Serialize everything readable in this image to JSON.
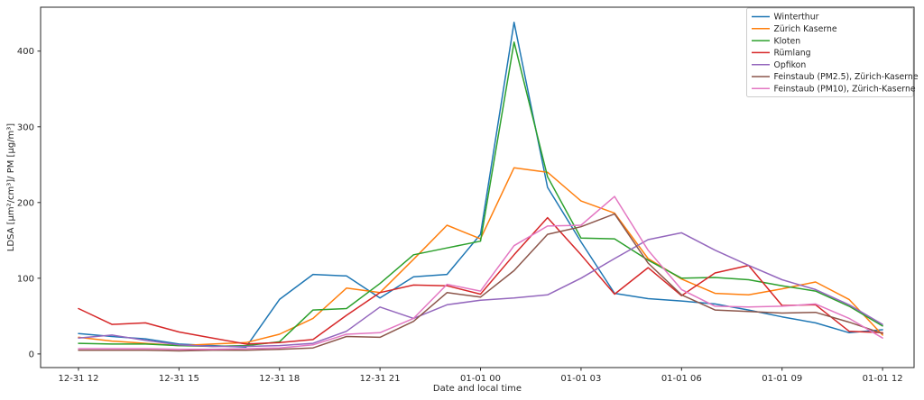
{
  "figure": {
    "kind": "matplotlib-style line figure"
  },
  "chart_data": {
    "type": "line",
    "title": "",
    "xlabel": "Date and local time",
    "ylabel": "LDSA [μm²/cm³]/ PM [μg/m³]",
    "grid": false,
    "legend_position": "upper right",
    "x_tick_labels": [
      "12-31 12",
      "12-31 15",
      "12-31 18",
      "12-31 21",
      "01-01 00",
      "01-01 03",
      "01-01 06",
      "01-01 09",
      "01-01 12"
    ],
    "x_tick_hours": [
      0,
      3,
      6,
      9,
      12,
      15,
      18,
      21,
      24
    ],
    "y_tick_labels": [
      "0",
      "100",
      "200",
      "300",
      "400"
    ],
    "y_ticks": [
      0,
      100,
      200,
      300,
      400
    ],
    "xlim_hours": [
      -1.13,
      24.94
    ],
    "ylim": [
      -18,
      458
    ],
    "x_hours": [
      0,
      1,
      2,
      3,
      4,
      5,
      6,
      7,
      8,
      9,
      10,
      11,
      12,
      13,
      14,
      15,
      16,
      17,
      18,
      19,
      20,
      21,
      22,
      23,
      24
    ],
    "series": [
      {
        "name": "Winterthur",
        "color": "#1f77b4",
        "values": [
          27,
          23,
          20,
          13,
          11,
          9,
          72,
          105,
          103,
          74,
          102,
          105,
          158,
          438,
          220,
          148,
          80,
          73,
          70,
          66,
          58,
          49,
          41,
          28,
          32
        ]
      },
      {
        "name": "Zürich Kaserne",
        "color": "#ff7f0e",
        "values": [
          22,
          17,
          14,
          11,
          13,
          15,
          26,
          47,
          87,
          81,
          125,
          170,
          152,
          246,
          240,
          202,
          186,
          126,
          99,
          80,
          78,
          86,
          95,
          72,
          25
        ]
      },
      {
        "name": "Kloten",
        "color": "#2ca02c",
        "values": [
          14,
          13,
          13,
          11,
          10,
          11,
          16,
          58,
          60,
          93,
          131,
          140,
          149,
          412,
          234,
          153,
          152,
          124,
          100,
          101,
          98,
          90,
          83,
          63,
          37
        ]
      },
      {
        "name": "Rümlang",
        "color": "#d62728",
        "values": [
          60,
          39,
          41,
          29,
          21,
          13,
          15,
          19,
          51,
          81,
          91,
          90,
          79,
          131,
          180,
          131,
          79,
          114,
          77,
          107,
          117,
          64,
          65,
          30,
          28
        ]
      },
      {
        "name": "Opfikon",
        "color": "#9467bd",
        "values": [
          21,
          25,
          18,
          12,
          10,
          10,
          11,
          14,
          30,
          62,
          47,
          65,
          71,
          74,
          78,
          100,
          126,
          151,
          160,
          137,
          117,
          98,
          85,
          65,
          39
        ]
      },
      {
        "name": "Feinstaub (PM2.5), Zürich-Kaserne",
        "color": "#8c564b",
        "values": [
          5,
          5,
          5,
          4,
          5,
          5,
          6,
          8,
          23,
          22,
          43,
          81,
          75,
          110,
          158,
          168,
          185,
          120,
          78,
          58,
          56,
          54,
          55,
          42,
          27
        ]
      },
      {
        "name": "Feinstaub (PM10), Zürich-Kaserne",
        "color": "#e377c2",
        "values": [
          7,
          7,
          7,
          6,
          6,
          7,
          8,
          12,
          26,
          28,
          47,
          92,
          83,
          143,
          169,
          170,
          208,
          137,
          85,
          63,
          62,
          63,
          66,
          47,
          21
        ]
      }
    ]
  }
}
